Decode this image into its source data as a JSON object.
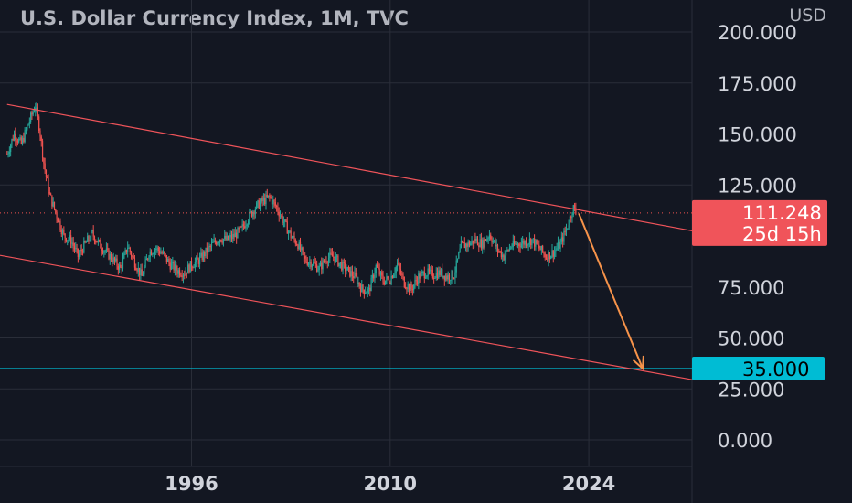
{
  "header": {
    "title": "U.S. Dollar Currency Index, 1M, TVC",
    "currency": "USD"
  },
  "colors": {
    "background": "#131722",
    "grid": "#2a2e39",
    "up": "#26a69a",
    "down": "#ef5350",
    "channel": "#f0545a",
    "arrow": "#f7934a",
    "target_line": "#00bcd4",
    "price_badge": "#f0545a",
    "target_badge": "#00bcd4"
  },
  "price_badge": {
    "value": "111.248",
    "countdown": "25d 15h"
  },
  "target_badge": {
    "value": "35.000"
  },
  "chart_data": {
    "type": "candlestick",
    "title": "U.S. Dollar Currency Index, 1M, TVC",
    "y_unit": "USD",
    "y_ticks": [
      "200.000",
      "175.000",
      "150.000",
      "125.000",
      "75.000",
      "50.000",
      "25.000",
      "0.000"
    ],
    "x_ticks": [
      "1996",
      "2010",
      "2024"
    ],
    "ylim": [
      -8,
      208
    ],
    "xlim": [
      1982.5,
      2031.3
    ],
    "grid": true,
    "last_price": 111.248,
    "target_level": 35.0,
    "price_path": [
      [
        1983.0,
        140
      ],
      [
        1983.5,
        150
      ],
      [
        1984.0,
        145
      ],
      [
        1984.5,
        155
      ],
      [
        1985.0,
        164
      ],
      [
        1985.3,
        152
      ],
      [
        1985.6,
        135
      ],
      [
        1986.0,
        120
      ],
      [
        1986.5,
        110
      ],
      [
        1987.0,
        100
      ],
      [
        1987.5,
        98
      ],
      [
        1988.0,
        90
      ],
      [
        1988.5,
        96
      ],
      [
        1989.0,
        101
      ],
      [
        1989.5,
        96
      ],
      [
        1990.0,
        92
      ],
      [
        1990.5,
        88
      ],
      [
        1991.0,
        84
      ],
      [
        1991.5,
        95
      ],
      [
        1992.0,
        87
      ],
      [
        1992.5,
        80
      ],
      [
        1993.0,
        92
      ],
      [
        1993.5,
        94
      ],
      [
        1994.0,
        91
      ],
      [
        1994.5,
        86
      ],
      [
        1995.0,
        83
      ],
      [
        1995.5,
        82
      ],
      [
        1996.0,
        86
      ],
      [
        1996.5,
        88
      ],
      [
        1997.0,
        92
      ],
      [
        1997.5,
        96
      ],
      [
        1998.0,
        99
      ],
      [
        1998.5,
        98
      ],
      [
        1999.0,
        100
      ],
      [
        1999.5,
        103
      ],
      [
        2000.0,
        109
      ],
      [
        2000.5,
        114
      ],
      [
        2001.0,
        117
      ],
      [
        2001.5,
        119
      ],
      [
        2002.0,
        114
      ],
      [
        2002.5,
        107
      ],
      [
        2003.0,
        100
      ],
      [
        2003.5,
        96
      ],
      [
        2004.0,
        88
      ],
      [
        2004.5,
        87
      ],
      [
        2005.0,
        84
      ],
      [
        2005.5,
        89
      ],
      [
        2006.0,
        90
      ],
      [
        2006.5,
        86
      ],
      [
        2007.0,
        83
      ],
      [
        2007.5,
        80
      ],
      [
        2008.0,
        74
      ],
      [
        2008.5,
        73
      ],
      [
        2009.0,
        85
      ],
      [
        2009.5,
        78
      ],
      [
        2010.0,
        79
      ],
      [
        2010.5,
        86
      ],
      [
        2011.0,
        77
      ],
      [
        2011.5,
        74
      ],
      [
        2012.0,
        80
      ],
      [
        2012.5,
        82
      ],
      [
        2013.0,
        81
      ],
      [
        2013.5,
        82
      ],
      [
        2014.0,
        80
      ],
      [
        2014.5,
        81
      ],
      [
        2015.0,
        95
      ],
      [
        2015.5,
        96
      ],
      [
        2016.0,
        98
      ],
      [
        2016.5,
        96
      ],
      [
        2017.0,
        101
      ],
      [
        2017.5,
        94
      ],
      [
        2018.0,
        90
      ],
      [
        2018.5,
        95
      ],
      [
        2019.0,
        96
      ],
      [
        2019.5,
        97
      ],
      [
        2020.0,
        98
      ],
      [
        2020.5,
        94
      ],
      [
        2021.0,
        90
      ],
      [
        2021.5,
        92
      ],
      [
        2022.0,
        96
      ],
      [
        2022.5,
        105
      ],
      [
        2022.9,
        114
      ],
      [
        2023.1,
        111.248
      ]
    ],
    "channel_upper": [
      [
        1983.0,
        164.5
      ],
      [
        2031.3,
        102.5
      ]
    ],
    "channel_lower": [
      [
        1982.5,
        90.5
      ],
      [
        2031.3,
        29.5
      ]
    ],
    "arrow": [
      [
        2023.3,
        111.0
      ],
      [
        2027.8,
        35.0
      ]
    ]
  }
}
